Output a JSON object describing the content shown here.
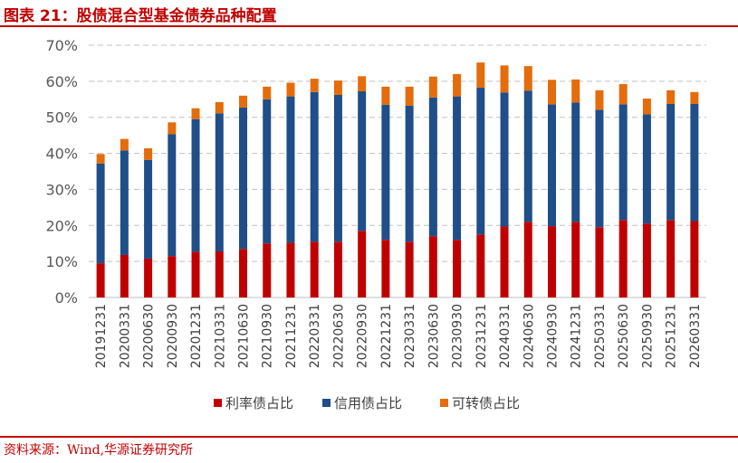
{
  "figure_title": "图表 21：股债混合型基金债券品种配置",
  "source_note": "资料来源：Wind,华源证券研究所",
  "colors": {
    "rate_bond": "#c00000",
    "credit_bond": "#1f4e89",
    "convertible_bond": "#e46c0a",
    "title": "#c00000",
    "grid": "#c0c0c0"
  },
  "chart_data": {
    "type": "bar",
    "stacked": true,
    "title": "",
    "xlabel": "",
    "ylabel": "",
    "ylim": [
      0,
      70
    ],
    "yticks": [
      "0%",
      "10%",
      "20%",
      "30%",
      "40%",
      "50%",
      "60%",
      "70%"
    ],
    "grid": true,
    "legend_position": "bottom",
    "categories": [
      "20191231",
      "20200331",
      "20200630",
      "20200930",
      "20201231",
      "20210331",
      "20210630",
      "20210930",
      "20211231",
      "20220331",
      "20220630",
      "20220930",
      "20221231",
      "20230331",
      "20230630",
      "20230930",
      "20231231",
      "20240331",
      "20240630",
      "20240930",
      "20241231",
      "20250331",
      "20250630",
      "20250930",
      "20251231",
      "20260331"
    ],
    "series": [
      {
        "name": "利率债占比",
        "values": [
          9.5,
          11.8,
          10.8,
          11.5,
          12.7,
          12.8,
          13.5,
          15,
          15.2,
          15.5,
          15.5,
          18.5,
          16,
          15.5,
          17,
          16,
          17.5,
          19.7,
          21,
          19.8,
          21,
          19.5,
          21.5,
          20.5,
          21.5,
          21.2
        ]
      },
      {
        "name": "信用债占比",
        "values": [
          27.7,
          29,
          27.4,
          33.8,
          36.8,
          38.3,
          39.2,
          40,
          40.6,
          41.5,
          40.7,
          38.7,
          37.5,
          37.7,
          38.5,
          39.8,
          40.7,
          37.2,
          36.4,
          33.8,
          33.1,
          32.6,
          32.1,
          30.3,
          32.2,
          32.5
        ]
      },
      {
        "name": "可转债占比",
        "values": [
          2.6,
          3.2,
          3.2,
          3.3,
          3,
          3.1,
          3.3,
          3.5,
          3.8,
          3.7,
          4,
          4.2,
          5,
          5.3,
          5.8,
          6.2,
          7,
          7.5,
          6.8,
          6.8,
          6.4,
          5.4,
          5.6,
          4.4,
          3.8,
          3.3
        ]
      }
    ]
  }
}
